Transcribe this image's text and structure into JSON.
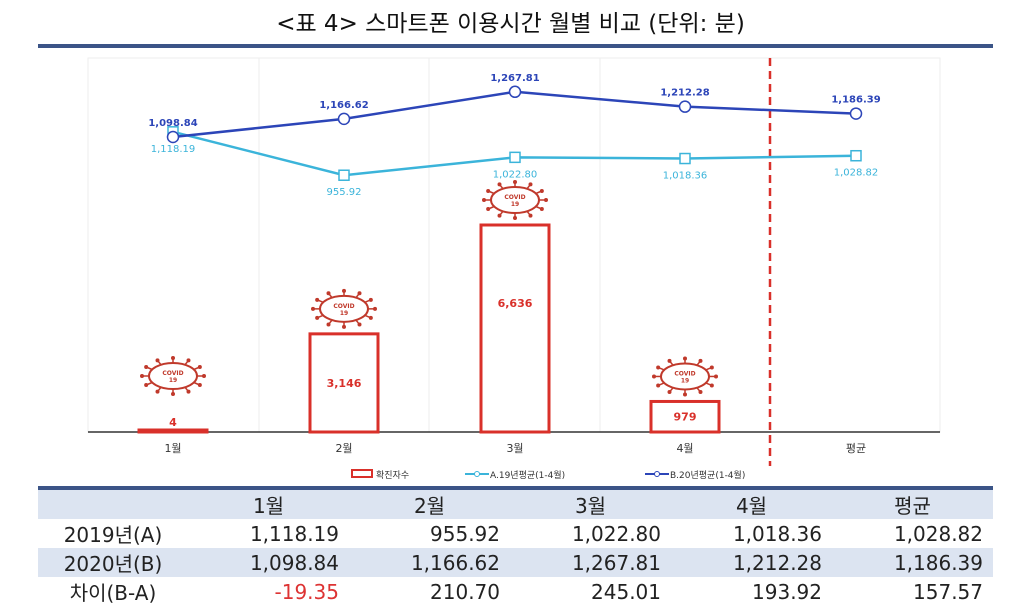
{
  "title": "<표 4> 스마트폰 이용시간 월별 비교  (단위: 분)",
  "chart_data": {
    "type": "bar+line",
    "categories": [
      "1월",
      "2월",
      "3월",
      "4월",
      "평균"
    ],
    "bars": {
      "name": "확진자수",
      "values": [
        4,
        3146,
        6636,
        979,
        null
      ],
      "badge": "COVID 19"
    },
    "series": [
      {
        "name": "A.19년평균(1-4월)",
        "values": [
          1118.19,
          955.92,
          1022.8,
          1018.36,
          1028.82
        ],
        "labels": [
          "1,118.19",
          "955.92",
          "1,022.80",
          "1,018.36",
          "1,028.82"
        ],
        "color": "#3bb4da"
      },
      {
        "name": "B.20년평균(1-4월)",
        "values": [
          1098.84,
          1166.62,
          1267.81,
          1212.28,
          1186.39
        ],
        "labels": [
          "1,098.84",
          "1,166.62",
          "1,267.81",
          "1,212.28",
          "1,186.39"
        ],
        "color": "#2c45b8"
      }
    ],
    "bar_labels": [
      "4",
      "3,146",
      "6,636",
      "979"
    ],
    "bar_color": "#d9302a"
  },
  "table": {
    "header": [
      "",
      "1월",
      "2월",
      "3월",
      "4월",
      "평균"
    ],
    "rows": [
      [
        "2019년(A)",
        "1,118.19",
        "955.92",
        "1,022.80",
        "1,018.36",
        "1,028.82"
      ],
      [
        "2020년(B)",
        "1,098.84",
        "1,166.62",
        "1,267.81",
        "1,212.28",
        "1,186.39"
      ],
      [
        "차이(B-A)",
        "-19.35",
        "210.70",
        "245.01",
        "193.92",
        "157.57"
      ]
    ]
  }
}
